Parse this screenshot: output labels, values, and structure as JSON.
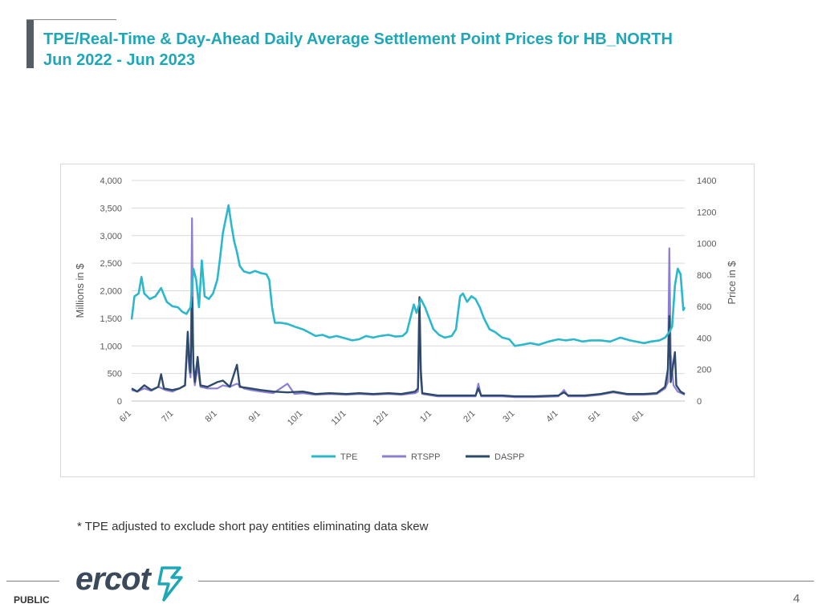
{
  "header": {
    "title_line1": "TPE/Real-Time & Day-Ahead Daily Average Settlement Point Prices for HB_NORTH",
    "title_line2": "Jun 2022 -  Jun 2023"
  },
  "footnote": "* TPE adjusted to exclude short pay entities eliminating data skew",
  "footer": {
    "classification": "PUBLIC",
    "page_number": "4",
    "logo_text": "ercot"
  },
  "colors": {
    "title": "#1fa7b8",
    "tpe": "#2bb8cc",
    "rtspp": "#8b7fd4",
    "daspp": "#2e4a6b"
  },
  "chart_data": {
    "type": "line",
    "x_start": "2022-06-01",
    "x_end": "2023-06-30",
    "x_tick_labels": [
      "6/1",
      "7/1",
      "8/1",
      "9/1",
      "10/1",
      "11/1",
      "12/1",
      "1/1",
      "2/1",
      "3/1",
      "4/1",
      "5/1",
      "6/1"
    ],
    "x_tick_dates": [
      "2022-06-01",
      "2022-07-01",
      "2022-08-01",
      "2022-09-01",
      "2022-10-01",
      "2022-11-01",
      "2022-12-01",
      "2023-01-01",
      "2023-02-01",
      "2023-03-01",
      "2023-04-01",
      "2023-05-01",
      "2023-06-01"
    ],
    "ylabel_left": "Millions in $",
    "ylim_left": [
      0,
      4000
    ],
    "y_ticks_left": [
      "0",
      "500",
      "1,000",
      "1,500",
      "2,000",
      "2,500",
      "3,000",
      "3,500",
      "4,000"
    ],
    "ylabel_right": "Price in $",
    "ylim_right": [
      0,
      1400
    ],
    "y_ticks_right": [
      "0",
      "200",
      "400",
      "600",
      "800",
      "1000",
      "1200",
      "1400"
    ],
    "grid": "horizontal",
    "legend_position": "bottom",
    "series": [
      {
        "name": "TPE",
        "axis": "left",
        "points": [
          [
            "2022-06-01",
            1480
          ],
          [
            "2022-06-03",
            1900
          ],
          [
            "2022-06-06",
            1950
          ],
          [
            "2022-06-08",
            2250
          ],
          [
            "2022-06-10",
            1950
          ],
          [
            "2022-06-14",
            1850
          ],
          [
            "2022-06-18",
            1900
          ],
          [
            "2022-06-22",
            2050
          ],
          [
            "2022-06-26",
            1800
          ],
          [
            "2022-06-30",
            1720
          ],
          [
            "2022-07-04",
            1700
          ],
          [
            "2022-07-07",
            1620
          ],
          [
            "2022-07-10",
            1580
          ],
          [
            "2022-07-13",
            1700
          ],
          [
            "2022-07-15",
            2400
          ],
          [
            "2022-07-17",
            2200
          ],
          [
            "2022-07-19",
            1700
          ],
          [
            "2022-07-21",
            2550
          ],
          [
            "2022-07-23",
            1900
          ],
          [
            "2022-07-26",
            1850
          ],
          [
            "2022-07-29",
            1950
          ],
          [
            "2022-08-01",
            2200
          ],
          [
            "2022-08-03",
            2600
          ],
          [
            "2022-08-05",
            3050
          ],
          [
            "2022-08-07",
            3300
          ],
          [
            "2022-08-09",
            3550
          ],
          [
            "2022-08-11",
            3200
          ],
          [
            "2022-08-13",
            2900
          ],
          [
            "2022-08-15",
            2700
          ],
          [
            "2022-08-17",
            2450
          ],
          [
            "2022-08-20",
            2350
          ],
          [
            "2022-08-24",
            2320
          ],
          [
            "2022-08-28",
            2360
          ],
          [
            "2022-09-01",
            2320
          ],
          [
            "2022-09-05",
            2300
          ],
          [
            "2022-09-07",
            2200
          ],
          [
            "2022-09-09",
            1700
          ],
          [
            "2022-09-11",
            1420
          ],
          [
            "2022-09-15",
            1420
          ],
          [
            "2022-09-20",
            1400
          ],
          [
            "2022-09-25",
            1350
          ],
          [
            "2022-10-01",
            1300
          ],
          [
            "2022-10-05",
            1250
          ],
          [
            "2022-10-10",
            1180
          ],
          [
            "2022-10-15",
            1200
          ],
          [
            "2022-10-20",
            1150
          ],
          [
            "2022-10-25",
            1180
          ],
          [
            "2022-11-01",
            1130
          ],
          [
            "2022-11-05",
            1100
          ],
          [
            "2022-11-10",
            1120
          ],
          [
            "2022-11-15",
            1180
          ],
          [
            "2022-11-20",
            1150
          ],
          [
            "2022-11-25",
            1180
          ],
          [
            "2022-12-01",
            1200
          ],
          [
            "2022-12-06",
            1170
          ],
          [
            "2022-12-11",
            1180
          ],
          [
            "2022-12-14",
            1250
          ],
          [
            "2022-12-17",
            1550
          ],
          [
            "2022-12-19",
            1750
          ],
          [
            "2022-12-21",
            1600
          ],
          [
            "2022-12-24",
            1850
          ],
          [
            "2022-12-27",
            1700
          ],
          [
            "2022-12-30",
            1500
          ],
          [
            "2023-01-02",
            1300
          ],
          [
            "2023-01-06",
            1200
          ],
          [
            "2023-01-10",
            1150
          ],
          [
            "2023-01-15",
            1180
          ],
          [
            "2023-01-18",
            1300
          ],
          [
            "2023-01-21",
            1900
          ],
          [
            "2023-01-23",
            1950
          ],
          [
            "2023-01-26",
            1800
          ],
          [
            "2023-01-29",
            1900
          ],
          [
            "2023-02-01",
            1850
          ],
          [
            "2023-02-04",
            1700
          ],
          [
            "2023-02-07",
            1500
          ],
          [
            "2023-02-11",
            1300
          ],
          [
            "2023-02-15",
            1250
          ],
          [
            "2023-02-20",
            1150
          ],
          [
            "2023-02-25",
            1120
          ],
          [
            "2023-03-01",
            1000
          ],
          [
            "2023-03-06",
            1020
          ],
          [
            "2023-03-12",
            1050
          ],
          [
            "2023-03-18",
            1020
          ],
          [
            "2023-03-25",
            1080
          ],
          [
            "2023-04-01",
            1120
          ],
          [
            "2023-04-06",
            1100
          ],
          [
            "2023-04-12",
            1120
          ],
          [
            "2023-04-18",
            1080
          ],
          [
            "2023-04-24",
            1100
          ],
          [
            "2023-05-01",
            1100
          ],
          [
            "2023-05-08",
            1080
          ],
          [
            "2023-05-15",
            1150
          ],
          [
            "2023-05-22",
            1100
          ],
          [
            "2023-06-01",
            1050
          ],
          [
            "2023-06-06",
            1080
          ],
          [
            "2023-06-12",
            1100
          ],
          [
            "2023-06-16",
            1150
          ],
          [
            "2023-06-19",
            1250
          ],
          [
            "2023-06-21",
            1350
          ],
          [
            "2023-06-23",
            2100
          ],
          [
            "2023-06-25",
            2400
          ],
          [
            "2023-06-27",
            2300
          ],
          [
            "2023-06-29",
            1650
          ],
          [
            "2023-06-30",
            1700
          ]
        ]
      },
      {
        "name": "RTSPP",
        "axis": "right",
        "points": [
          [
            "2022-06-01",
            70
          ],
          [
            "2022-06-05",
            60
          ],
          [
            "2022-06-10",
            80
          ],
          [
            "2022-06-15",
            65
          ],
          [
            "2022-06-20",
            90
          ],
          [
            "2022-06-25",
            70
          ],
          [
            "2022-06-30",
            60
          ],
          [
            "2022-07-05",
            80
          ],
          [
            "2022-07-09",
            100
          ],
          [
            "2022-07-11",
            390
          ],
          [
            "2022-07-12",
            200
          ],
          [
            "2022-07-13",
            150
          ],
          [
            "2022-07-14",
            1160
          ],
          [
            "2022-07-15",
            200
          ],
          [
            "2022-07-16",
            100
          ],
          [
            "2022-07-18",
            220
          ],
          [
            "2022-07-20",
            90
          ],
          [
            "2022-07-25",
            80
          ],
          [
            "2022-08-01",
            80
          ],
          [
            "2022-08-05",
            100
          ],
          [
            "2022-08-10",
            90
          ],
          [
            "2022-08-15",
            110
          ],
          [
            "2022-08-20",
            80
          ],
          [
            "2022-08-25",
            70
          ],
          [
            "2022-09-01",
            60
          ],
          [
            "2022-09-10",
            50
          ],
          [
            "2022-09-20",
            110
          ],
          [
            "2022-09-25",
            45
          ],
          [
            "2022-10-01",
            50
          ],
          [
            "2022-10-10",
            40
          ],
          [
            "2022-10-20",
            45
          ],
          [
            "2022-11-01",
            40
          ],
          [
            "2022-11-10",
            45
          ],
          [
            "2022-11-20",
            40
          ],
          [
            "2022-12-01",
            45
          ],
          [
            "2022-12-10",
            40
          ],
          [
            "2022-12-20",
            50
          ],
          [
            "2022-12-22",
            60
          ],
          [
            "2022-12-23",
            650
          ],
          [
            "2022-12-24",
            140
          ],
          [
            "2022-12-25",
            45
          ],
          [
            "2023-01-05",
            30
          ],
          [
            "2023-01-20",
            30
          ],
          [
            "2023-02-01",
            30
          ],
          [
            "2023-02-03",
            110
          ],
          [
            "2023-02-05",
            30
          ],
          [
            "2023-02-20",
            30
          ],
          [
            "2023-03-01",
            25
          ],
          [
            "2023-03-15",
            25
          ],
          [
            "2023-04-01",
            30
          ],
          [
            "2023-04-05",
            70
          ],
          [
            "2023-04-08",
            30
          ],
          [
            "2023-04-20",
            30
          ],
          [
            "2023-05-01",
            40
          ],
          [
            "2023-05-10",
            55
          ],
          [
            "2023-05-20",
            40
          ],
          [
            "2023-06-01",
            40
          ],
          [
            "2023-06-10",
            45
          ],
          [
            "2023-06-16",
            80
          ],
          [
            "2023-06-18",
            120
          ],
          [
            "2023-06-19",
            970
          ],
          [
            "2023-06-20",
            300
          ],
          [
            "2023-06-22",
            100
          ],
          [
            "2023-06-25",
            60
          ],
          [
            "2023-06-30",
            40
          ]
        ]
      },
      {
        "name": "DASPP",
        "axis": "right",
        "points": [
          [
            "2022-06-01",
            80
          ],
          [
            "2022-06-05",
            60
          ],
          [
            "2022-06-10",
            100
          ],
          [
            "2022-06-15",
            70
          ],
          [
            "2022-06-20",
            90
          ],
          [
            "2022-06-22",
            170
          ],
          [
            "2022-06-24",
            80
          ],
          [
            "2022-06-30",
            70
          ],
          [
            "2022-07-05",
            80
          ],
          [
            "2022-07-09",
            100
          ],
          [
            "2022-07-11",
            440
          ],
          [
            "2022-07-12",
            250
          ],
          [
            "2022-07-13",
            180
          ],
          [
            "2022-07-14",
            660
          ],
          [
            "2022-07-15",
            240
          ],
          [
            "2022-07-16",
            120
          ],
          [
            "2022-07-18",
            280
          ],
          [
            "2022-07-20",
            100
          ],
          [
            "2022-07-25",
            90
          ],
          [
            "2022-08-01",
            120
          ],
          [
            "2022-08-05",
            130
          ],
          [
            "2022-08-10",
            90
          ],
          [
            "2022-08-15",
            230
          ],
          [
            "2022-08-17",
            90
          ],
          [
            "2022-08-25",
            80
          ],
          [
            "2022-09-01",
            70
          ],
          [
            "2022-09-10",
            60
          ],
          [
            "2022-09-20",
            55
          ],
          [
            "2022-10-01",
            60
          ],
          [
            "2022-10-10",
            45
          ],
          [
            "2022-10-20",
            50
          ],
          [
            "2022-11-01",
            45
          ],
          [
            "2022-11-10",
            50
          ],
          [
            "2022-11-20",
            45
          ],
          [
            "2022-12-01",
            50
          ],
          [
            "2022-12-10",
            45
          ],
          [
            "2022-12-20",
            60
          ],
          [
            "2022-12-22",
            80
          ],
          [
            "2022-12-23",
            660
          ],
          [
            "2022-12-24",
            200
          ],
          [
            "2022-12-25",
            50
          ],
          [
            "2023-01-05",
            35
          ],
          [
            "2023-01-20",
            35
          ],
          [
            "2023-02-01",
            35
          ],
          [
            "2023-02-03",
            80
          ],
          [
            "2023-02-05",
            35
          ],
          [
            "2023-02-20",
            35
          ],
          [
            "2023-03-01",
            30
          ],
          [
            "2023-03-15",
            30
          ],
          [
            "2023-04-01",
            35
          ],
          [
            "2023-04-05",
            55
          ],
          [
            "2023-04-08",
            35
          ],
          [
            "2023-04-20",
            35
          ],
          [
            "2023-05-01",
            45
          ],
          [
            "2023-05-10",
            60
          ],
          [
            "2023-05-20",
            45
          ],
          [
            "2023-06-01",
            45
          ],
          [
            "2023-06-10",
            50
          ],
          [
            "2023-06-16",
            90
          ],
          [
            "2023-06-18",
            200
          ],
          [
            "2023-06-19",
            540
          ],
          [
            "2023-06-20",
            120
          ],
          [
            "2023-06-23",
            310
          ],
          [
            "2023-06-24",
            100
          ],
          [
            "2023-06-27",
            60
          ],
          [
            "2023-06-30",
            45
          ]
        ]
      }
    ]
  }
}
